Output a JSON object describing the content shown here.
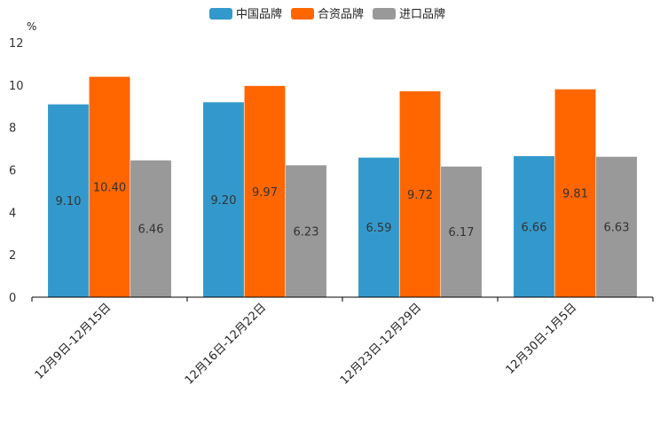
{
  "chart_data": {
    "type": "bar",
    "unit": "%",
    "categories": [
      "12月9日-12月15日",
      "12月16日-12月22日",
      "12月23日-12月29日",
      "12月30日-1月5日"
    ],
    "series": [
      {
        "name": "中国品牌",
        "color": "#3399cc",
        "values": [
          9.1,
          9.2,
          6.59,
          6.66
        ],
        "labels": [
          "9.10",
          "9.20",
          "6.59",
          "6.66"
        ]
      },
      {
        "name": "合资品牌",
        "color": "#ff6600",
        "values": [
          10.4,
          9.97,
          9.72,
          9.81
        ],
        "labels": [
          "10.40",
          "9.97",
          "9.72",
          "9.81"
        ]
      },
      {
        "name": "进口品牌",
        "color": "#999999",
        "values": [
          6.46,
          6.23,
          6.17,
          6.63
        ],
        "labels": [
          "6.46",
          "6.23",
          "6.17",
          "6.63"
        ]
      }
    ],
    "yticks": [
      "0",
      "2",
      "4",
      "6",
      "8",
      "10",
      "12"
    ],
    "ylim": [
      0,
      12
    ],
    "grid": false,
    "legend": "top-center"
  }
}
